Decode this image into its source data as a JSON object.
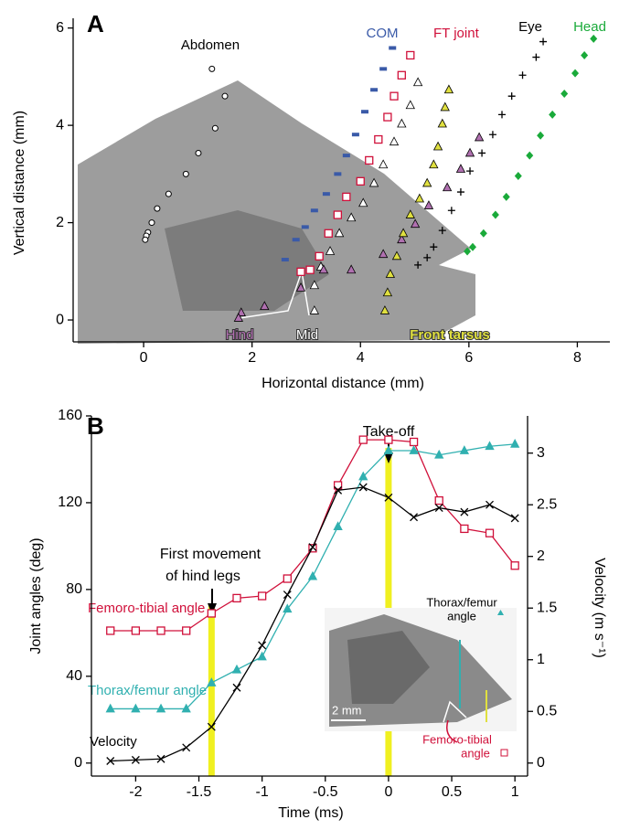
{
  "chart_data": [
    {
      "type": "scatter",
      "panel": "A",
      "xlabel": "Horizontal distance (mm)",
      "ylabel": "Vertical distance (mm)",
      "xlim": [
        -1.3,
        8.6
      ],
      "ylim": [
        -0.45,
        6.2
      ],
      "xticks": [
        0,
        2,
        4,
        6,
        8
      ],
      "yticks": [
        0,
        2,
        4,
        6
      ],
      "series": [
        {
          "name": "Abdomen",
          "color": "#ffffff",
          "marker": "circle",
          "x": [
            1.26,
            1.5,
            1.32,
            1.01,
            0.78,
            0.46,
            0.25,
            0.15,
            0.08,
            0.05,
            0.03
          ],
          "y": [
            5.16,
            4.6,
            3.94,
            3.43,
            3.0,
            2.59,
            2.29,
            2.0,
            1.8,
            1.73,
            1.65
          ]
        },
        {
          "name": "COM",
          "color": "#3a5aa8",
          "marker": "dash",
          "x": [
            4.59,
            4.42,
            4.25,
            4.08,
            3.91,
            3.74,
            3.58,
            3.37,
            3.15,
            2.98,
            2.81,
            2.61
          ],
          "y": [
            5.59,
            5.16,
            4.73,
            4.28,
            3.81,
            3.38,
            3.0,
            2.59,
            2.25,
            1.91,
            1.65,
            1.24
          ]
        },
        {
          "name": "FT joint",
          "color": "#d0103a",
          "marker": "square",
          "x": [
            4.92,
            4.76,
            4.62,
            4.5,
            4.33,
            4.16,
            4.0,
            3.74,
            3.58,
            3.41,
            3.24,
            3.07,
            2.9
          ],
          "y": [
            5.44,
            5.03,
            4.6,
            4.17,
            3.71,
            3.28,
            2.85,
            2.53,
            2.16,
            1.78,
            1.31,
            1.03,
            0.99
          ]
        },
        {
          "name": "Mid",
          "color": "#ffffff",
          "marker": "triangle",
          "x": [
            5.06,
            4.92,
            4.76,
            4.62,
            4.42,
            4.25,
            4.05,
            3.83,
            3.61,
            3.44,
            3.27,
            3.15,
            3.15
          ],
          "y": [
            4.88,
            4.41,
            4.03,
            3.66,
            3.19,
            2.81,
            2.4,
            2.1,
            1.78,
            1.41,
            1.09,
            0.71,
            0.19
          ]
        },
        {
          "name": "Hind",
          "color": "#b070b0",
          "marker": "triangle",
          "x": [
            6.19,
            6.02,
            5.85,
            5.6,
            5.26,
            5.01,
            4.76,
            4.42,
            3.83,
            3.32,
            2.9,
            2.23,
            1.8,
            1.75
          ],
          "y": [
            3.75,
            3.43,
            3.1,
            2.72,
            2.35,
            1.97,
            1.65,
            1.35,
            1.03,
            1.03,
            0.66,
            0.28,
            0.15,
            0.04
          ]
        },
        {
          "name": "Front tarsus",
          "color": "#e0e040",
          "marker": "triangle",
          "x": [
            5.63,
            5.56,
            5.51,
            5.43,
            5.35,
            5.23,
            5.09,
            4.92,
            4.79,
            4.67,
            4.55,
            4.5,
            4.45
          ],
          "y": [
            4.73,
            4.37,
            4.03,
            3.56,
            3.19,
            2.81,
            2.49,
            2.16,
            1.78,
            1.31,
            0.94,
            0.56,
            0.19
          ]
        },
        {
          "name": "Eye",
          "color": "#000000",
          "marker": "plus",
          "x": [
            7.37,
            7.24,
            6.99,
            6.79,
            6.61,
            6.44,
            6.24,
            6.02,
            5.85,
            5.68,
            5.51,
            5.35,
            5.23,
            5.06
          ],
          "y": [
            5.72,
            5.4,
            5.03,
            4.6,
            4.22,
            3.81,
            3.43,
            3.06,
            2.63,
            2.25,
            1.84,
            1.5,
            1.28,
            1.13
          ]
        },
        {
          "name": "Head",
          "color": "#1aaa3a",
          "marker": "diamond",
          "x": [
            8.3,
            8.13,
            7.96,
            7.76,
            7.54,
            7.32,
            7.12,
            6.91,
            6.69,
            6.49,
            6.27,
            6.07,
            5.97
          ],
          "y": [
            5.78,
            5.44,
            5.07,
            4.65,
            4.22,
            3.79,
            3.38,
            2.96,
            2.53,
            2.16,
            1.78,
            1.5,
            1.41
          ]
        }
      ]
    },
    {
      "type": "line",
      "panel": "B",
      "xlabel": "Time (ms)",
      "ylabel": "Joint angles (deg)",
      "y2label": "Velocity (m s⁻¹)",
      "xlim": [
        -2.35,
        1.1
      ],
      "ylim": [
        -6,
        160
      ],
      "y2lim": [
        -0.126,
        3.36
      ],
      "xticks": [
        -2,
        -1.5,
        -1,
        -0.5,
        0,
        0.5,
        1
      ],
      "yticks": [
        0,
        40,
        80,
        120,
        160
      ],
      "y2ticks": [
        0,
        0.5,
        1,
        1.5,
        2,
        2.5,
        3
      ],
      "x": [
        -2.2,
        -2,
        -1.8,
        -1.6,
        -1.4,
        -1.2,
        -1,
        -0.8,
        -0.6,
        -0.4,
        -0.2,
        0,
        0.2,
        0.4,
        0.6,
        0.8,
        1
      ],
      "series": [
        {
          "name": "Femoro-tibial angle",
          "color": "#d0103a",
          "marker": "square",
          "values": [
            61,
            61,
            61,
            61,
            69,
            76,
            77,
            85,
            99,
            128,
            149,
            149,
            148,
            121,
            108,
            106,
            91
          ]
        },
        {
          "name": "Thorax/femur angle",
          "color": "#30b0b0",
          "marker": "triangle",
          "values": [
            25,
            25,
            25,
            25,
            37,
            43,
            49,
            71,
            86,
            109,
            132,
            144,
            144,
            142,
            144,
            146,
            147
          ]
        },
        {
          "name": "Velocity",
          "color": "#000000",
          "marker": "cross",
          "axis": "y2",
          "values": [
            0.02,
            0.03,
            0.04,
            0.15,
            0.35,
            0.73,
            1.14,
            1.63,
            2.09,
            2.64,
            2.67,
            2.57,
            2.38,
            2.47,
            2.43,
            2.5,
            2.37
          ]
        }
      ],
      "events": [
        {
          "x": -1.4,
          "label": [
            "First movement",
            "of hind legs"
          ]
        },
        {
          "x": 0,
          "label": [
            "Take-off"
          ]
        }
      ],
      "inset_labels": [
        "Thorax/femur",
        "angle",
        "2 mm",
        "Femoro-tibial",
        "angle"
      ]
    }
  ]
}
